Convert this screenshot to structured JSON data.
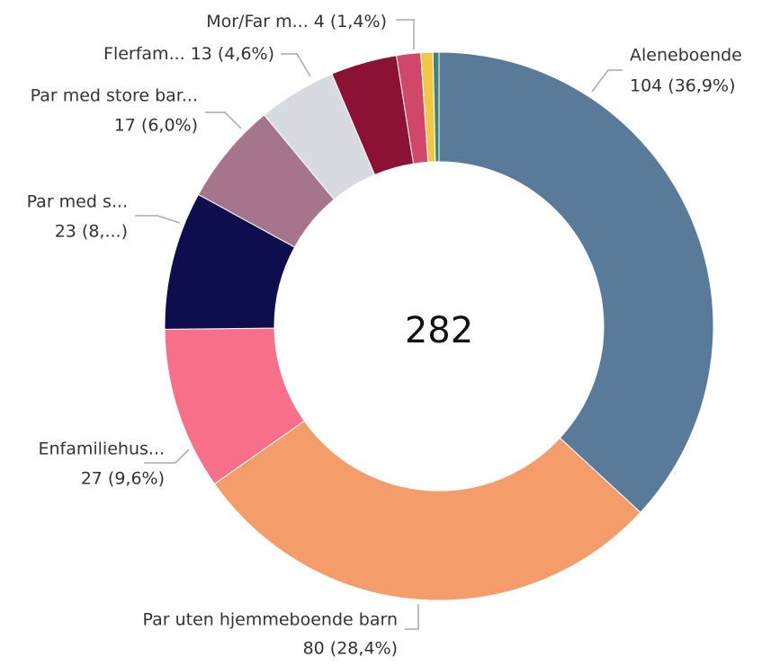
{
  "chart_data": {
    "type": "donut",
    "total": 282,
    "categories": [
      "Aleneboende",
      "Par uten hjemmeboende barn",
      "Enfamiliehus...",
      "Par med s...",
      "Par med store bar...",
      "Flerfam...",
      null,
      "Mor/Far m...",
      null,
      null
    ],
    "values": [
      104,
      80,
      27,
      23,
      17,
      13,
      11,
      4,
      2,
      1
    ],
    "value_labels": [
      "104 (36,9%)",
      "80 (28,4%)",
      "27 (9,6%)",
      "23 (8,...)",
      "17 (6,0%)",
      "13 (4,6%)",
      null,
      "4 (1,4%)",
      null,
      null
    ],
    "colors": [
      "#5a7a99",
      "#f59d6a",
      "#f76f88",
      "#0e0d4e",
      "#a6758c",
      "#d7dbe1",
      "#8b1235",
      "#d0476a",
      "#f2c744",
      "#3d8577"
    ]
  }
}
